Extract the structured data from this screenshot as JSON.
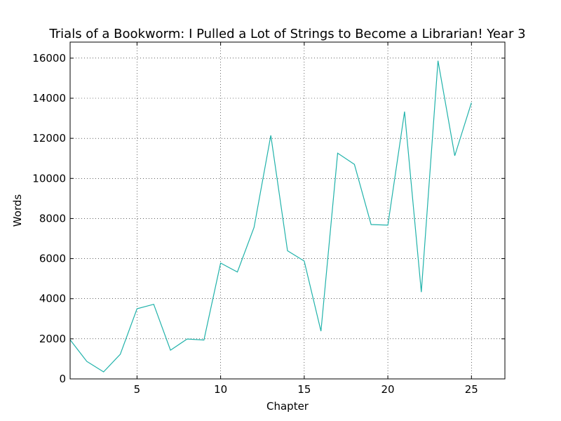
{
  "chart_data": {
    "type": "line",
    "title": "Trials of a Bookworm: I Pulled a Lot of Strings to Become a Librarian! Year 3",
    "xlabel": "Chapter",
    "ylabel": "Words",
    "xlim": [
      1,
      27
    ],
    "ylim": [
      0,
      16800
    ],
    "xticks": [
      5,
      10,
      15,
      20,
      25
    ],
    "yticks": [
      0,
      2000,
      4000,
      6000,
      8000,
      10000,
      12000,
      14000,
      16000
    ],
    "grid": true,
    "line_color": "#20b2aa",
    "series": [
      {
        "x": [
          1,
          2,
          3,
          4,
          5,
          6,
          7,
          8,
          9,
          10,
          11,
          12,
          13,
          14,
          15,
          16,
          17,
          18,
          19,
          20,
          21,
          22,
          23,
          24,
          25
        ],
        "values": [
          1950,
          870,
          350,
          1230,
          3500,
          3720,
          1430,
          1990,
          1940,
          5780,
          5330,
          7560,
          12150,
          6390,
          5880,
          2380,
          11260,
          10700,
          7700,
          7670,
          13330,
          4330,
          15870,
          11130,
          13780
        ]
      }
    ]
  }
}
